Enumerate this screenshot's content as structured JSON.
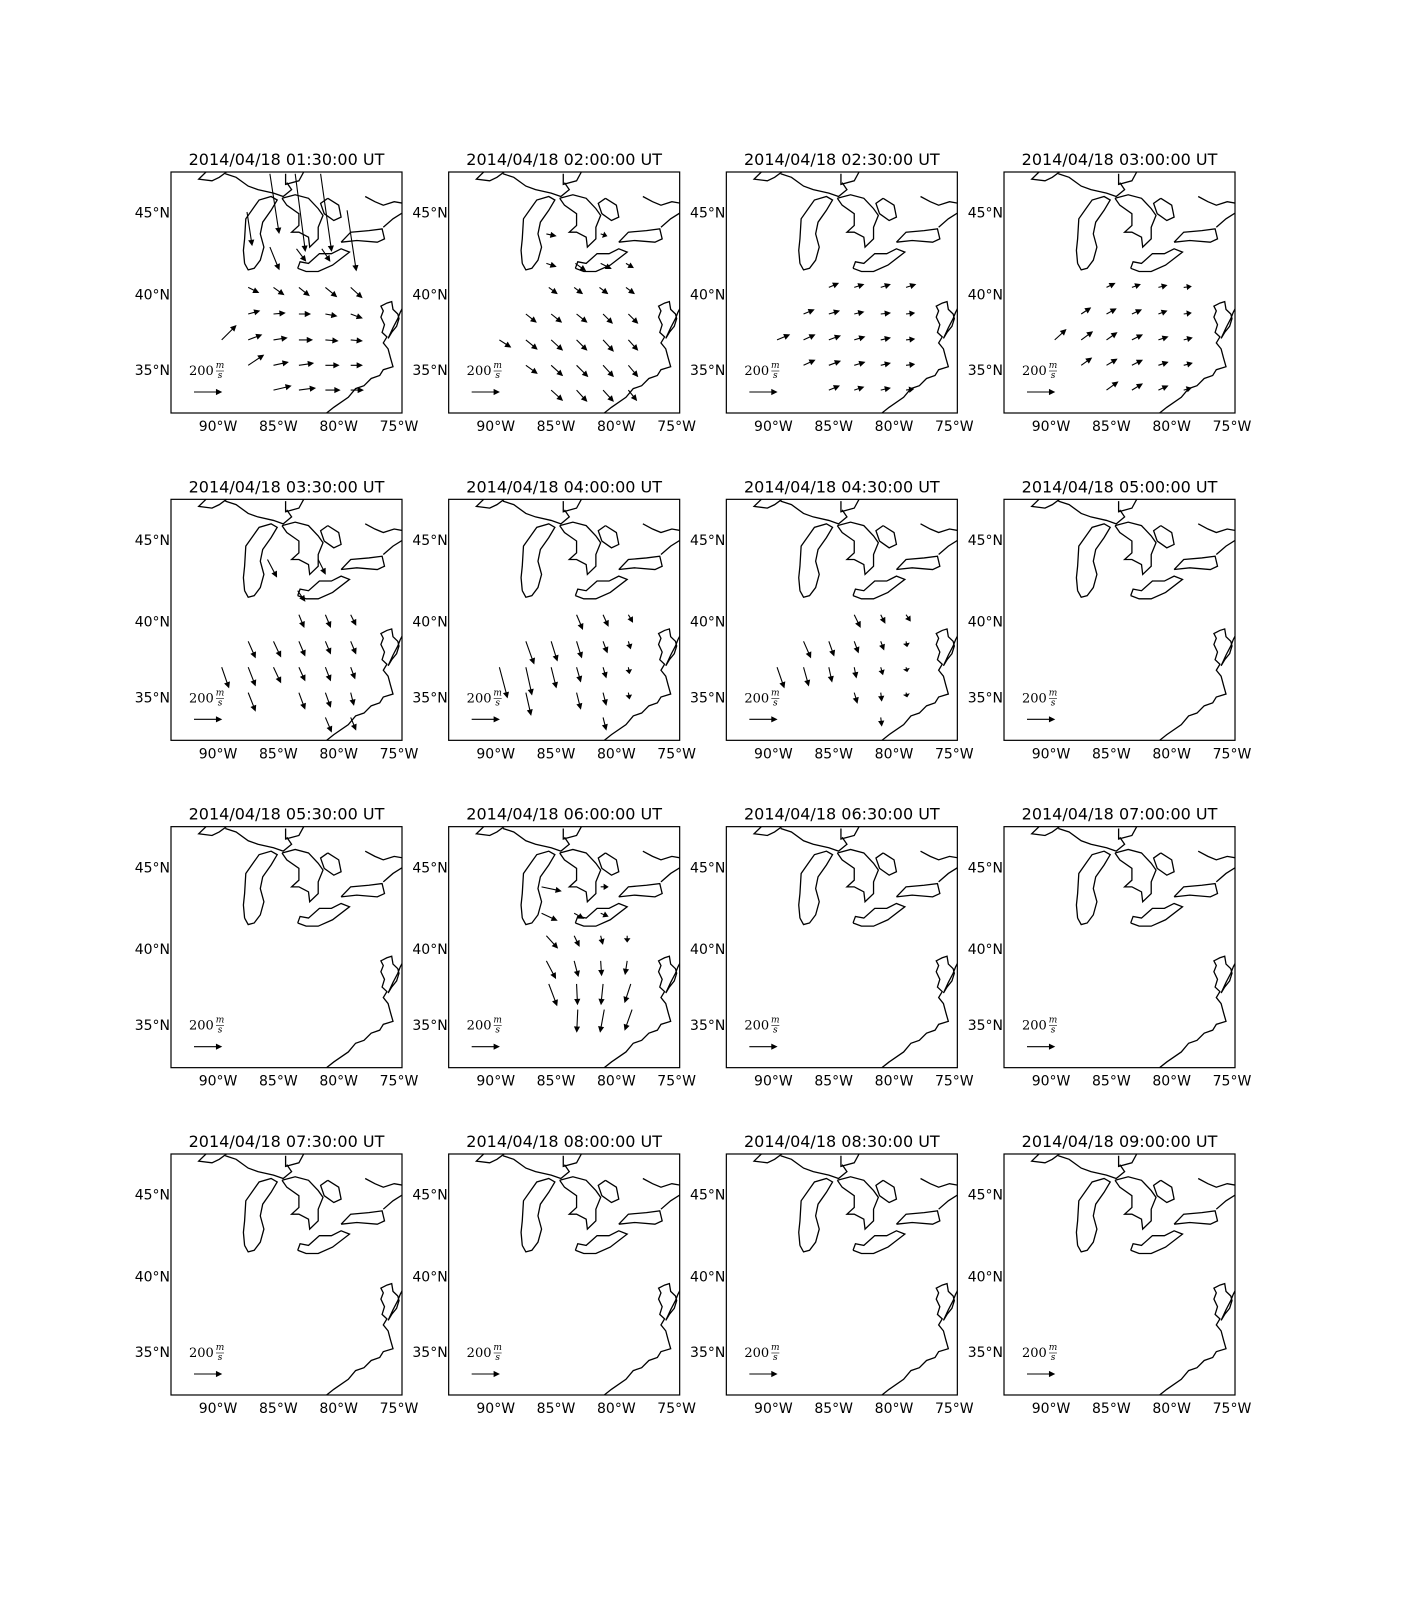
{
  "map": {
    "xlim": [
      -93.9,
      -74.75
    ],
    "ylim": [
      32.1,
      47.4
    ],
    "xticks": [
      {
        "value": -90,
        "label": "90°W"
      },
      {
        "value": -85,
        "label": "85°W"
      },
      {
        "value": -80,
        "label": "80°W"
      },
      {
        "value": -75,
        "label": "75°W"
      }
    ],
    "yticks": [
      {
        "value": 35,
        "label": "35°N"
      },
      {
        "value": 40,
        "label": "40°N"
      },
      {
        "value": 45,
        "label": "45°N"
      }
    ],
    "quiver_key": {
      "value": 200,
      "unit_numerator": "m",
      "unit_denominator": "s"
    }
  },
  "panels": [
    {
      "title": "2014/04/18 01:30:00 UT",
      "lon": [
        -85.7,
        -83.6,
        -81.5,
        -79.3,
        -87.6,
        -85.7,
        -83.5,
        -81.4,
        -87.5,
        -85.4,
        -83.3,
        -81.1,
        -79.0,
        -87.5,
        -85.4,
        -83.3,
        -81.1,
        -79.0,
        -89.7,
        -87.5,
        -85.4,
        -83.3,
        -81.1,
        -79.0,
        -87.5,
        -85.4,
        -83.3,
        -81.1,
        -79.0,
        -85.4,
        -83.3,
        -81.1,
        -79.0
      ],
      "lat": [
        47.3,
        47.3,
        47.3,
        45.2,
        45.1,
        43.0,
        42.9,
        42.9,
        40.5,
        40.5,
        40.5,
        40.5,
        40.5,
        38.8,
        38.8,
        38.8,
        38.8,
        38.8,
        37.1,
        37.1,
        37.1,
        37.1,
        37.1,
        37.1,
        35.4,
        35.4,
        35.4,
        35.4,
        35.4,
        33.7,
        33.7,
        33.7,
        33.7
      ],
      "u": [
        67,
        74,
        81,
        67,
        37,
        67,
        67,
        59,
        74,
        74,
        74,
        81,
        81,
        81,
        81,
        81,
        81,
        81,
        104,
        96,
        96,
        96,
        89,
        81,
        111,
        104,
        104,
        96,
        81,
        126,
        118,
        104,
        89
      ],
      "v": [
        -437,
        -570,
        -570,
        -444,
        -244,
        -163,
        -89,
        -89,
        -37,
        -52,
        -59,
        -67,
        -74,
        22,
        7,
        0,
        -15,
        -30,
        104,
        37,
        15,
        0,
        -7,
        -7,
        74,
        22,
        15,
        0,
        0,
        30,
        15,
        0,
        0
      ]
    },
    {
      "title": "2014/04/18 02:00:00 UT",
      "lon": [
        -85.8,
        -81.3,
        -85.8,
        -83.4,
        -81.3,
        -79.2,
        -85.6,
        -83.5,
        -81.4,
        -79.2,
        -87.5,
        -85.4,
        -83.3,
        -81.1,
        -79.0,
        -89.7,
        -87.5,
        -85.4,
        -83.3,
        -81.1,
        -79.0,
        -87.5,
        -85.4,
        -83.3,
        -81.1,
        -79.0,
        -85.4,
        -83.3,
        -81.1,
        -79.0
      ],
      "lat": [
        43.8,
        43.8,
        42.0,
        42.0,
        42.0,
        42.0,
        40.5,
        40.5,
        40.5,
        40.5,
        38.8,
        38.8,
        38.8,
        38.8,
        38.8,
        37.1,
        37.1,
        37.1,
        37.1,
        37.1,
        37.1,
        35.4,
        35.4,
        35.4,
        35.4,
        35.4,
        33.7,
        33.7,
        33.7,
        33.7
      ],
      "u": [
        67,
        44,
        67,
        74,
        74,
        52,
        59,
        59,
        59,
        59,
        74,
        74,
        74,
        67,
        67,
        81,
        81,
        81,
        74,
        74,
        67,
        81,
        81,
        81,
        74,
        67,
        81,
        74,
        74,
        59
      ],
      "v": [
        -15,
        -15,
        -22,
        -52,
        -37,
        -30,
        -44,
        -44,
        -44,
        -44,
        -59,
        -59,
        -59,
        -67,
        -67,
        -52,
        -67,
        -74,
        -74,
        -81,
        -74,
        -59,
        -74,
        -81,
        -81,
        -81,
        -74,
        -81,
        -81,
        -74
      ]
    },
    {
      "title": "2014/04/18 02:30:00 UT",
      "lon": [
        -85.4,
        -83.3,
        -81.1,
        -79.0,
        -87.5,
        -85.4,
        -83.3,
        -81.1,
        -79.0,
        -89.7,
        -87.5,
        -85.4,
        -83.3,
        -81.1,
        -79.0,
        -87.5,
        -85.4,
        -83.3,
        -81.1,
        -79.0,
        -85.4,
        -83.3,
        -81.1,
        -79.0
      ],
      "lat": [
        40.5,
        40.5,
        40.5,
        40.5,
        38.8,
        38.8,
        38.8,
        38.8,
        38.8,
        37.1,
        37.1,
        37.1,
        37.1,
        37.1,
        37.1,
        35.4,
        35.4,
        35.4,
        35.4,
        35.4,
        33.7,
        33.7,
        33.7,
        33.7
      ],
      "u": [
        67,
        67,
        67,
        67,
        74,
        74,
        67,
        67,
        59,
        89,
        81,
        81,
        74,
        67,
        59,
        81,
        81,
        74,
        67,
        59,
        74,
        67,
        67,
        52
      ],
      "v": [
        30,
        22,
        22,
        22,
        30,
        22,
        15,
        7,
        7,
        37,
        37,
        30,
        22,
        15,
        7,
        37,
        30,
        22,
        15,
        7,
        30,
        22,
        15,
        7
      ]
    },
    {
      "title": "2014/04/18 03:00:00 UT",
      "lon": [
        -85.4,
        -83.3,
        -81.1,
        -79.0,
        -87.5,
        -85.4,
        -83.3,
        -81.1,
        -79.0,
        -89.7,
        -87.5,
        -85.4,
        -83.3,
        -81.1,
        -79.0,
        -87.5,
        -85.4,
        -83.3,
        -81.1,
        -79.0,
        -85.4,
        -83.3,
        -81.1,
        -79.0
      ],
      "lat": [
        40.5,
        40.5,
        40.5,
        40.5,
        38.8,
        38.8,
        38.8,
        38.8,
        38.8,
        37.1,
        37.1,
        37.1,
        37.1,
        37.1,
        37.1,
        35.4,
        35.4,
        35.4,
        35.4,
        35.4,
        33.7,
        33.7,
        33.7,
        33.7
      ],
      "u": [
        59,
        59,
        59,
        52,
        67,
        67,
        67,
        59,
        52,
        81,
        81,
        74,
        74,
        67,
        59,
        74,
        74,
        74,
        67,
        59,
        81,
        74,
        67,
        52
      ],
      "v": [
        30,
        22,
        15,
        7,
        44,
        37,
        30,
        22,
        7,
        74,
        59,
        52,
        37,
        22,
        15,
        52,
        44,
        37,
        22,
        15,
        59,
        44,
        30,
        15
      ]
    },
    {
      "title": "2014/04/18 03:30:00 UT",
      "lon": [
        -85.9,
        -83.4,
        -81.7,
        -83.3,
        -81.1,
        -79.0,
        -87.5,
        -85.4,
        -83.3,
        -81.1,
        -79.0,
        -89.7,
        -87.5,
        -85.4,
        -83.3,
        -81.1,
        -79.0,
        -87.5,
        -83.3,
        -81.1,
        -79.0,
        -81.1,
        -79.0
      ],
      "lat": [
        43.9,
        42.0,
        43.9,
        40.5,
        40.5,
        40.5,
        38.8,
        38.8,
        38.8,
        38.8,
        38.8,
        37.1,
        37.1,
        37.1,
        37.1,
        37.1,
        37.1,
        35.4,
        35.4,
        35.4,
        35.4,
        33.7,
        33.7
      ],
      "u": [
        67,
        52,
        52,
        37,
        37,
        37,
        52,
        52,
        44,
        37,
        37,
        52,
        52,
        52,
        44,
        37,
        30,
        52,
        44,
        37,
        22,
        44,
        37
      ],
      "v": [
        -126,
        -74,
        -104,
        -89,
        -89,
        -74,
        -118,
        -111,
        -104,
        -89,
        -89,
        -148,
        -133,
        -111,
        -96,
        -96,
        -81,
        -133,
        -118,
        -104,
        -89,
        -104,
        -89
      ]
    },
    {
      "title": "2014/04/18 04:00:00 UT",
      "lon": [
        -83.3,
        -81.1,
        -79.0,
        -87.5,
        -85.4,
        -83.3,
        -81.1,
        -79.0,
        -89.7,
        -87.5,
        -85.4,
        -83.3,
        -81.1,
        -79.0,
        -87.5,
        -83.3,
        -81.1,
        -79.0,
        -81.1
      ],
      "lat": [
        40.5,
        40.5,
        40.5,
        38.8,
        38.8,
        38.8,
        38.8,
        38.8,
        37.1,
        37.1,
        37.1,
        37.1,
        37.1,
        37.1,
        35.4,
        35.4,
        35.4,
        35.4,
        33.7
      ],
      "u": [
        44,
        37,
        30,
        59,
        44,
        37,
        30,
        15,
        59,
        44,
        37,
        30,
        22,
        7,
        37,
        30,
        22,
        7,
        22
      ],
      "v": [
        -104,
        -81,
        -52,
        -163,
        -141,
        -118,
        -81,
        -52,
        -222,
        -200,
        -148,
        -104,
        -74,
        -44,
        -163,
        -118,
        -89,
        -44,
        -89
      ]
    },
    {
      "title": "2014/04/18 04:30:00 UT",
      "lon": [
        -83.3,
        -81.1,
        -79.0,
        -87.5,
        -85.4,
        -83.3,
        -81.1,
        -79.0,
        -89.7,
        -87.5,
        -85.4,
        -83.3,
        -81.1,
        -79.0,
        -83.3,
        -81.1,
        -79.0,
        -81.1
      ],
      "lat": [
        40.5,
        40.5,
        40.5,
        38.8,
        38.8,
        38.8,
        38.8,
        38.8,
        37.1,
        37.1,
        37.1,
        37.1,
        37.1,
        37.1,
        35.4,
        35.4,
        35.4,
        33.7
      ],
      "u": [
        44,
        30,
        30,
        52,
        37,
        30,
        22,
        7,
        52,
        37,
        22,
        15,
        15,
        7,
        22,
        7,
        7,
        7
      ],
      "v": [
        -89,
        -59,
        -44,
        -118,
        -104,
        -81,
        -59,
        -37,
        -148,
        -133,
        -104,
        -74,
        -52,
        -30,
        -74,
        -59,
        -30,
        -59
      ]
    },
    {
      "title": "2014/04/18 05:00:00 UT"
    },
    {
      "title": "2014/04/18 05:30:00 UT"
    },
    {
      "title": "2014/04/18 06:00:00 UT",
      "lon": [
        -86.2,
        -81.3,
        -86.2,
        -83.5,
        -81.3,
        -85.8,
        -83.5,
        -81.3,
        -79.1,
        -85.8,
        -83.5,
        -81.3,
        -79.1,
        -85.6,
        -83.3,
        -81.1,
        -78.8,
        -83.2,
        -81.0,
        -78.7
      ],
      "lat": [
        43.9,
        43.9,
        42.3,
        42.3,
        42.3,
        40.9,
        40.9,
        40.9,
        40.9,
        39.3,
        39.3,
        39.3,
        39.3,
        37.8,
        37.8,
        37.8,
        37.8,
        36.1,
        36.1,
        36.1
      ],
      "u": [
        141,
        52,
        111,
        67,
        52,
        81,
        37,
        15,
        0,
        67,
        30,
        7,
        -15,
        59,
        7,
        -15,
        -44,
        -7,
        -30,
        -52
      ],
      "v": [
        -30,
        0,
        -52,
        -37,
        -22,
        -89,
        -74,
        -59,
        -44,
        -126,
        -111,
        -104,
        -96,
        -156,
        -148,
        -148,
        -133,
        -163,
        -163,
        -148
      ]
    },
    {
      "title": "2014/04/18 06:30:00 UT"
    },
    {
      "title": "2014/04/18 07:00:00 UT"
    },
    {
      "title": "2014/04/18 07:30:00 UT"
    },
    {
      "title": "2014/04/18 08:00:00 UT"
    },
    {
      "title": "2014/04/18 08:30:00 UT"
    },
    {
      "title": "2014/04/18 09:00:00 UT"
    }
  ]
}
